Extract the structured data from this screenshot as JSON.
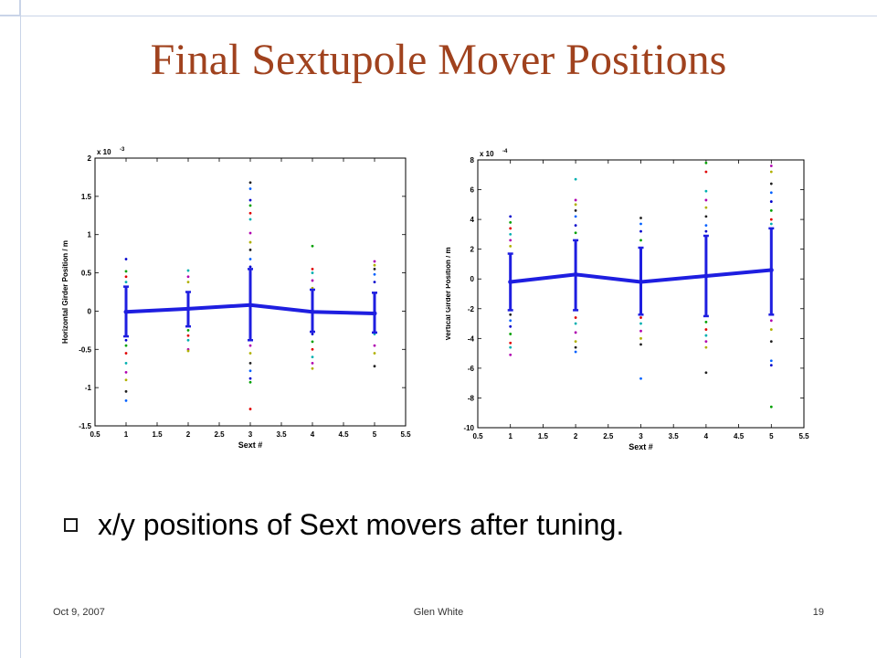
{
  "title": "Final Sextupole Mover Positions",
  "bullet": "x/y positions of Sext movers after tuning.",
  "footer": {
    "date": "Oct 9, 2007",
    "author": "Glen White",
    "page": "19"
  },
  "colors": {
    "title": "#A0421E",
    "mean_line": "#1E1EE0"
  },
  "chart_data": [
    {
      "type": "scatter",
      "ylabel": "Horizontal Girder Position / m",
      "xlabel": "Sext #",
      "scale_label": "x 10",
      "scale_exp": "-3",
      "xlim": [
        0.5,
        5.5
      ],
      "ylim": [
        -1.5,
        2
      ],
      "xticks": [
        0.5,
        1,
        1.5,
        2,
        2.5,
        3,
        3.5,
        4,
        4.5,
        5,
        5.5
      ],
      "yticks": [
        -1.5,
        -1,
        -0.5,
        0,
        0.5,
        1,
        1.5,
        2
      ],
      "xtick_labels": [
        "0.5",
        "1",
        "1.5",
        "2",
        "2.5",
        "3",
        "3.5",
        "4",
        "4.5",
        "5",
        "5.5"
      ],
      "ytick_labels": [
        "-1.5",
        "-1",
        "-0.5",
        "0",
        "0.5",
        "1",
        "1.5",
        "2"
      ],
      "x": [
        1,
        2,
        3,
        4,
        5
      ],
      "mean": [
        -0.01,
        0.03,
        0.08,
        -0.01,
        -0.03
      ],
      "band_high": [
        0.32,
        0.25,
        0.55,
        0.28,
        0.24
      ],
      "band_low": [
        -0.33,
        -0.2,
        -0.38,
        -0.27,
        -0.28
      ],
      "points": [
        [
          0.68,
          0.52,
          0.45,
          0.38,
          0.25,
          0.1,
          -0.05,
          -0.2,
          -0.38,
          -0.45,
          -0.55,
          -0.68,
          -0.8,
          -0.9,
          -1.05,
          -1.17
        ],
        [
          0.53,
          0.45,
          0.38,
          0.2,
          0.05,
          -0.1,
          -0.25,
          -0.32,
          -0.38,
          -0.5,
          -0.52
        ],
        [
          1.68,
          1.6,
          1.45,
          1.38,
          1.28,
          1.2,
          1.02,
          0.9,
          0.8,
          0.68,
          0.58,
          0.4,
          0.2,
          -0.2,
          -0.45,
          -0.55,
          -0.68,
          -0.78,
          -0.88,
          -0.93,
          -1.28
        ],
        [
          0.85,
          0.55,
          0.5,
          0.4,
          0.3,
          0.1,
          -0.1,
          -0.3,
          -0.4,
          -0.5,
          -0.6,
          -0.68,
          -0.75
        ],
        [
          0.65,
          0.6,
          0.55,
          0.48,
          0.38,
          0.1,
          -0.1,
          -0.3,
          -0.45,
          -0.55,
          -0.72
        ]
      ]
    },
    {
      "type": "scatter",
      "ylabel": "Vertical Girder Position / m",
      "xlabel": "Sext #",
      "scale_label": "x 10",
      "scale_exp": "-4",
      "xlim": [
        0.5,
        5.5
      ],
      "ylim": [
        -10,
        8
      ],
      "xticks": [
        0.5,
        1,
        1.5,
        2,
        2.5,
        3,
        3.5,
        4,
        4.5,
        5,
        5.5
      ],
      "yticks": [
        -10,
        -8,
        -6,
        -4,
        -2,
        0,
        2,
        4,
        6,
        8
      ],
      "xtick_labels": [
        "0.5",
        "1",
        "1.5",
        "2",
        "2.5",
        "3",
        "3.5",
        "4",
        "4.5",
        "5",
        "5.5"
      ],
      "ytick_labels": [
        "-10",
        "-8",
        "-6",
        "-4",
        "-2",
        "0",
        "2",
        "4",
        "6",
        "8"
      ],
      "x": [
        1,
        2,
        3,
        4,
        5
      ],
      "mean": [
        -0.2,
        0.3,
        -0.2,
        0.2,
        0.6
      ],
      "band_high": [
        1.7,
        2.6,
        2.1,
        2.9,
        3.4
      ],
      "band_low": [
        -2.1,
        -2.1,
        -2.4,
        -2.5,
        -2.4
      ],
      "points": [
        [
          4.2,
          3.8,
          3.4,
          3.0,
          2.6,
          2.2,
          -2.4,
          -2.8,
          -3.2,
          -3.7,
          -4.3,
          -4.6,
          -5.1
        ],
        [
          6.7,
          5.3,
          5.0,
          4.6,
          4.2,
          3.6,
          3.1,
          -2.6,
          -3.0,
          -3.6,
          -4.2,
          -4.6,
          -4.9
        ],
        [
          4.1,
          3.7,
          3.2,
          2.6,
          -2.6,
          -3.0,
          -3.5,
          -4.0,
          -4.4,
          -6.7
        ],
        [
          7.8,
          7.2,
          5.9,
          5.3,
          4.8,
          4.2,
          3.6,
          3.2,
          -2.9,
          -3.4,
          -3.8,
          -4.2,
          -4.6,
          -6.3
        ],
        [
          7.6,
          7.2,
          6.4,
          5.8,
          5.2,
          4.6,
          4.0,
          3.7,
          -2.8,
          -3.4,
          -4.2,
          -5.5,
          -5.8,
          -8.6
        ]
      ]
    }
  ]
}
